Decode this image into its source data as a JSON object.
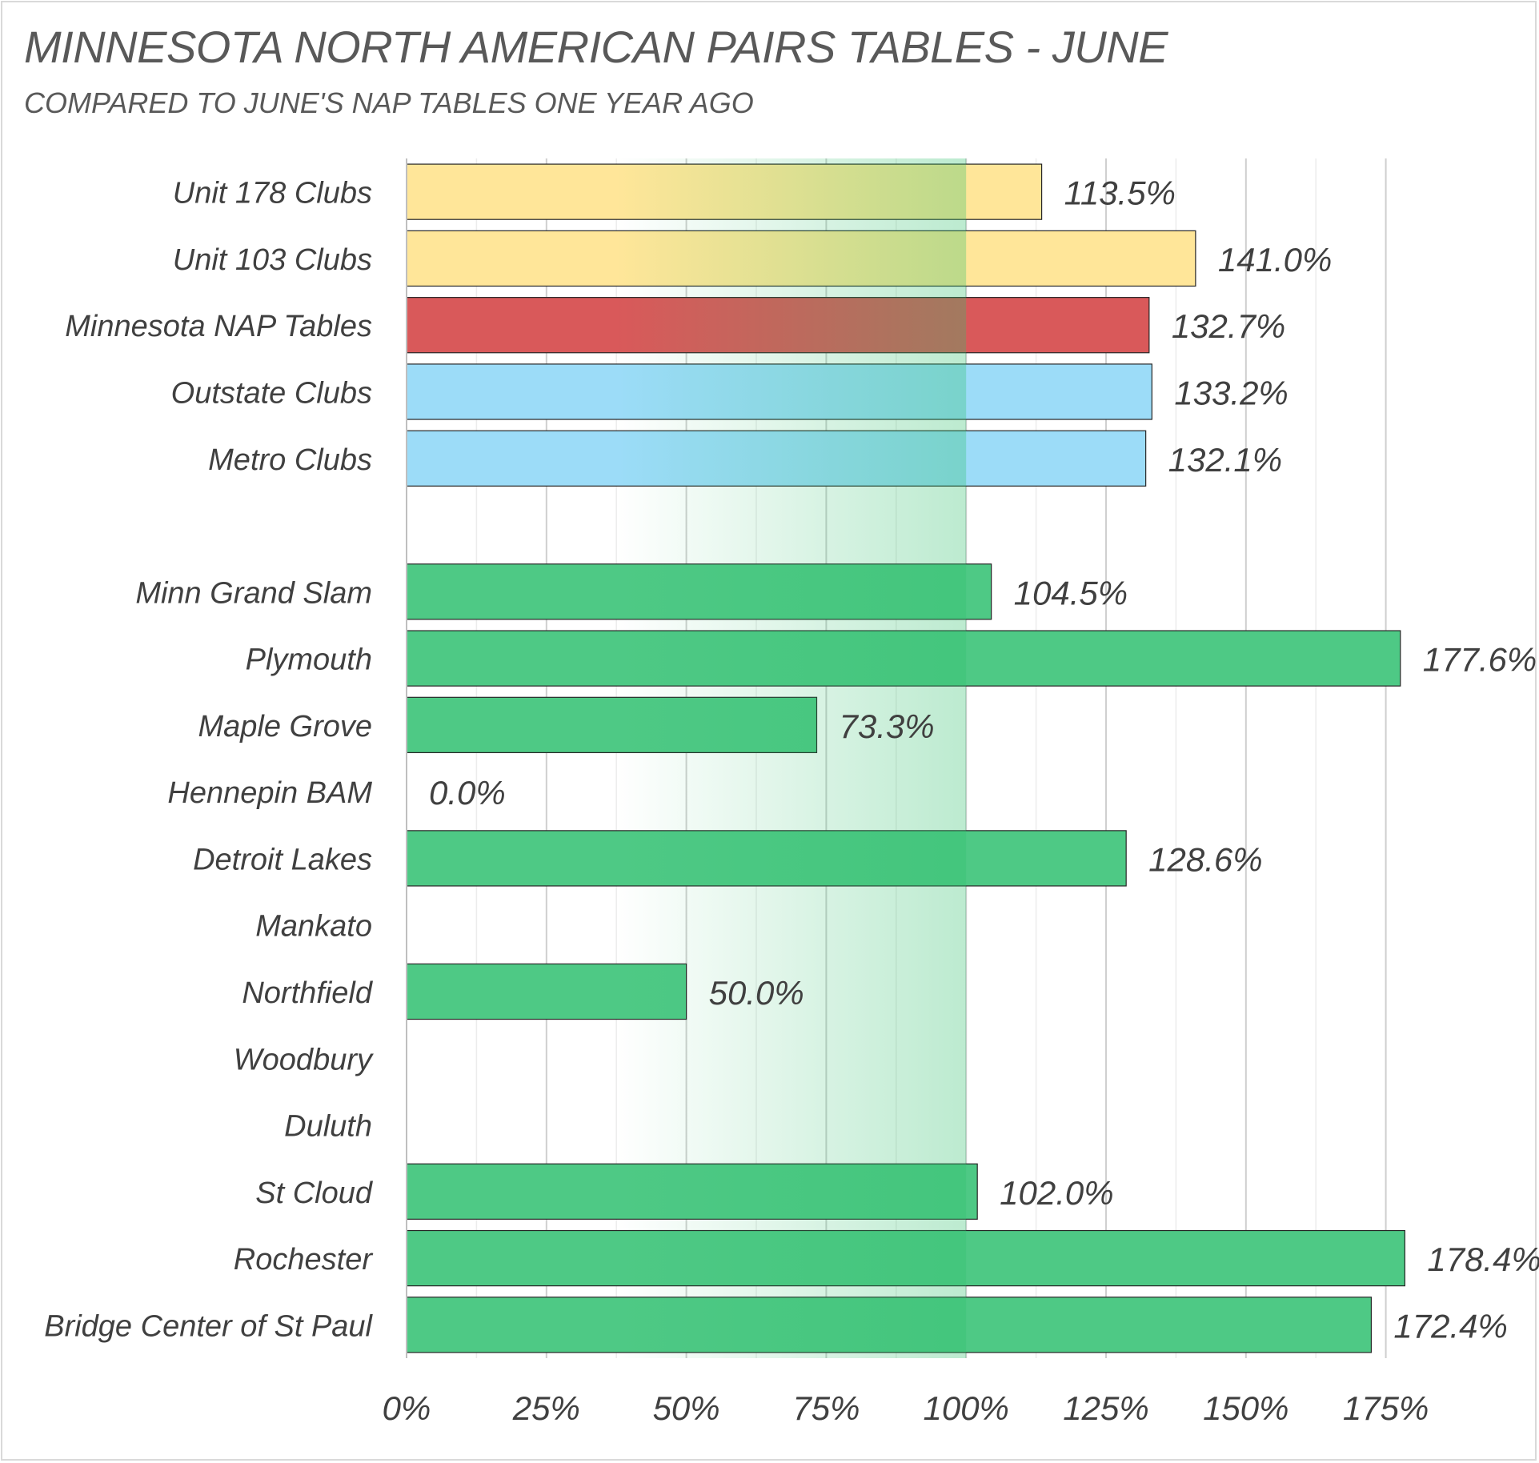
{
  "chart_data": {
    "type": "bar",
    "orientation": "horizontal",
    "title": "MINNESOTA NORTH AMERICAN PAIRS TABLES - JUNE",
    "subtitle": "COMPARED TO JUNE'S NAP TABLES ONE YEAR AGO",
    "xlabel": "",
    "ylabel": "",
    "xlim": [
      0,
      1.875
    ],
    "x_ticks": [
      0,
      0.25,
      0.5,
      0.75,
      1.0,
      1.25,
      1.5,
      1.75
    ],
    "x_tick_labels": [
      "0%",
      "25%",
      "50%",
      "75%",
      "100%",
      "125%",
      "150%",
      "175%"
    ],
    "gridlines": true,
    "highlight_band": {
      "from": 0.375,
      "to": 1.0,
      "color": "#2ebf6b"
    },
    "categories": [
      "Unit 178 Clubs",
      "Unit 103 Clubs",
      "Minnesota NAP Tables",
      "Outstate Clubs",
      "Metro Clubs",
      "",
      "Minn Grand Slam",
      "Plymouth",
      "Maple Grove",
      "Hennepin BAM",
      "Detroit Lakes",
      "Mankato",
      "Northfield",
      "Woodbury",
      "Duluth",
      "St Cloud",
      "Rochester",
      "Bridge Center of St Paul"
    ],
    "values": [
      1.135,
      1.41,
      1.327,
      1.332,
      1.321,
      null,
      1.045,
      1.776,
      0.733,
      0.0,
      1.286,
      null,
      0.5,
      null,
      null,
      1.02,
      1.784,
      1.724
    ],
    "data_labels": [
      "113.5%",
      "141.0%",
      "132.7%",
      "133.2%",
      "132.1%",
      "",
      "104.5%",
      "177.6%",
      "73.3%",
      "0.0%",
      "128.6%",
      "",
      "50.0%",
      "",
      "",
      "102.0%",
      "178.4%",
      "172.4%"
    ],
    "bar_colors": [
      "#ffe699",
      "#ffe699",
      "#d9595a",
      "#9cdcf8",
      "#9cdcf8",
      "",
      "#4ec985",
      "#4ec985",
      "#4ec985",
      "#4ec985",
      "#4ec985",
      "#4ec985",
      "#4ec985",
      "#4ec985",
      "#4ec985",
      "#4ec985",
      "#4ec985",
      "#4ec985"
    ]
  }
}
